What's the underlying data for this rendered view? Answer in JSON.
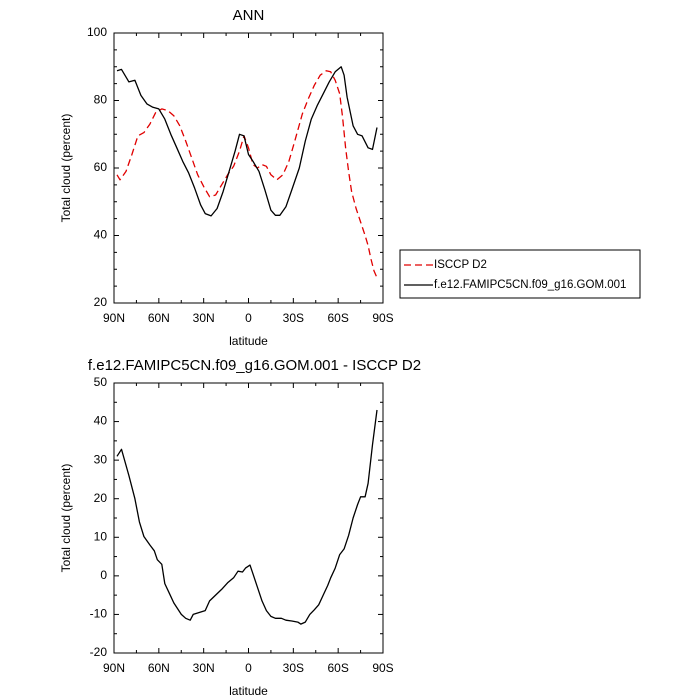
{
  "chart_data": [
    {
      "type": "line",
      "title": "ANN",
      "xlabel": "latitude",
      "ylabel": "Total cloud (percent)",
      "xlim": [
        -90,
        90
      ],
      "ylim": [
        20,
        100
      ],
      "x_ticks": [
        "90N",
        "60N",
        "30N",
        "0",
        "30S",
        "60S",
        "90S"
      ],
      "y_ticks": [
        "20",
        "40",
        "60",
        "80",
        "100"
      ],
      "legend_position": "right",
      "series": [
        {
          "name": "ISCCP D2",
          "color": "#e00000",
          "dash": "dashed",
          "points": [
            [
              -88,
              58
            ],
            [
              -86,
              56.5
            ],
            [
              -82,
              59
            ],
            [
              -78,
              64
            ],
            [
              -74,
              69.5
            ],
            [
              -70,
              70.5
            ],
            [
              -66,
              73
            ],
            [
              -62,
              76.5
            ],
            [
              -58,
              77.5
            ],
            [
              -54,
              77
            ],
            [
              -50,
              75.5
            ],
            [
              -46,
              72.5
            ],
            [
              -42,
              68
            ],
            [
              -38,
              63
            ],
            [
              -34,
              58
            ],
            [
              -30,
              54.5
            ],
            [
              -26,
              51.5
            ],
            [
              -22,
              52
            ],
            [
              -18,
              55
            ],
            [
              -14,
              58
            ],
            [
              -10,
              60.5
            ],
            [
              -6,
              65
            ],
            [
              -3,
              69.5
            ],
            [
              0,
              66
            ],
            [
              3,
              61
            ],
            [
              6,
              60
            ],
            [
              9,
              61
            ],
            [
              12,
              60.5
            ],
            [
              15,
              58
            ],
            [
              19,
              56.5
            ],
            [
              23,
              58
            ],
            [
              27,
              62
            ],
            [
              31,
              68
            ],
            [
              36,
              76
            ],
            [
              40,
              80.5
            ],
            [
              44,
              84.5
            ],
            [
              48,
              87.5
            ],
            [
              52,
              88.8
            ],
            [
              55,
              88.5
            ],
            [
              58,
              86
            ],
            [
              61,
              82
            ],
            [
              63,
              75
            ],
            [
              65,
              66
            ],
            [
              67,
              59
            ],
            [
              69,
              53
            ],
            [
              72,
              48
            ],
            [
              75,
              44
            ],
            [
              78,
              40
            ],
            [
              80,
              37
            ],
            [
              82,
              33
            ],
            [
              84,
              29.5
            ],
            [
              86,
              27.5
            ]
          ]
        },
        {
          "name": "f.e12.FAMIPC5CN.f09_g16.GOM.001",
          "color": "#000000",
          "dash": "solid",
          "points": [
            [
              -88,
              88.8
            ],
            [
              -85,
              89.2
            ],
            [
              -80,
              85.5
            ],
            [
              -76,
              86
            ],
            [
              -72,
              81.5
            ],
            [
              -68,
              79
            ],
            [
              -64,
              78
            ],
            [
              -60,
              77.5
            ],
            [
              -56,
              74.5
            ],
            [
              -52,
              70
            ],
            [
              -48,
              66
            ],
            [
              -44,
              62
            ],
            [
              -40,
              58.5
            ],
            [
              -36,
              54
            ],
            [
              -32,
              49
            ],
            [
              -29,
              46.5
            ],
            [
              -25,
              45.8
            ],
            [
              -21,
              48
            ],
            [
              -17,
              53
            ],
            [
              -13,
              59
            ],
            [
              -9,
              65
            ],
            [
              -6,
              70
            ],
            [
              -3,
              69.5
            ],
            [
              0,
              64
            ],
            [
              3,
              62
            ],
            [
              7,
              59
            ],
            [
              11,
              53.5
            ],
            [
              15,
              47.5
            ],
            [
              18,
              46
            ],
            [
              21,
              46
            ],
            [
              25,
              48.5
            ],
            [
              29,
              53.5
            ],
            [
              34,
              60
            ],
            [
              38,
              68
            ],
            [
              42,
              74.5
            ],
            [
              46,
              78.5
            ],
            [
              50,
              82
            ],
            [
              54,
              85.5
            ],
            [
              58,
              88.5
            ],
            [
              62,
              90
            ],
            [
              64,
              87.5
            ],
            [
              66,
              81
            ],
            [
              70,
              72.5
            ],
            [
              73,
              70
            ],
            [
              76,
              69.5
            ],
            [
              80,
              66
            ],
            [
              83,
              65.5
            ],
            [
              86,
              72
            ]
          ]
        }
      ]
    },
    {
      "type": "line",
      "title": "f.e12.FAMIPC5CN.f09_g16.GOM.001 - ISCCP D2",
      "xlabel": "latitude",
      "ylabel": "Total cloud (percent)",
      "xlim": [
        -90,
        90
      ],
      "ylim": [
        -20,
        50
      ],
      "x_ticks": [
        "90N",
        "60N",
        "30N",
        "0",
        "30S",
        "60S",
        "90S"
      ],
      "y_ticks": [
        "-20",
        "-10",
        "0",
        "10",
        "20",
        "30",
        "40",
        "50"
      ],
      "series": [
        {
          "color": "#000000",
          "dash": "solid",
          "points": [
            [
              -88,
              31
            ],
            [
              -85,
              32.8
            ],
            [
              -80,
              26
            ],
            [
              -76,
              20
            ],
            [
              -73,
              14
            ],
            [
              -70,
              10.2
            ],
            [
              -66,
              8
            ],
            [
              -63,
              6.5
            ],
            [
              -61,
              4.2
            ],
            [
              -58,
              3
            ],
            [
              -56,
              -2
            ],
            [
              -53,
              -4.5
            ],
            [
              -50,
              -7
            ],
            [
              -45,
              -10
            ],
            [
              -42,
              -11
            ],
            [
              -39,
              -11.5
            ],
            [
              -37,
              -10
            ],
            [
              -33,
              -9.5
            ],
            [
              -29,
              -9
            ],
            [
              -26,
              -6.5
            ],
            [
              -22,
              -5
            ],
            [
              -18,
              -3.5
            ],
            [
              -14,
              -1.8
            ],
            [
              -10,
              -0.5
            ],
            [
              -7,
              1.2
            ],
            [
              -4,
              1
            ],
            [
              -2,
              2
            ],
            [
              1,
              2.8
            ],
            [
              3,
              0.5
            ],
            [
              6,
              -3
            ],
            [
              9,
              -6.5
            ],
            [
              12,
              -9
            ],
            [
              15,
              -10.5
            ],
            [
              18,
              -11
            ],
            [
              22,
              -11
            ],
            [
              25,
              -11.5
            ],
            [
              29,
              -11.7
            ],
            [
              33,
              -12
            ],
            [
              35,
              -12.5
            ],
            [
              38,
              -12
            ],
            [
              41,
              -10
            ],
            [
              44,
              -8.8
            ],
            [
              47,
              -7.5
            ],
            [
              50,
              -5
            ],
            [
              53,
              -2.5
            ],
            [
              55,
              -0.5
            ],
            [
              58,
              2
            ],
            [
              61,
              5.5
            ],
            [
              64,
              7
            ],
            [
              67,
              10.5
            ],
            [
              70,
              15
            ],
            [
              73,
              18.5
            ],
            [
              75,
              20.5
            ],
            [
              78,
              20.5
            ],
            [
              80,
              24
            ],
            [
              83,
              34
            ],
            [
              86,
              43
            ]
          ]
        }
      ]
    }
  ]
}
